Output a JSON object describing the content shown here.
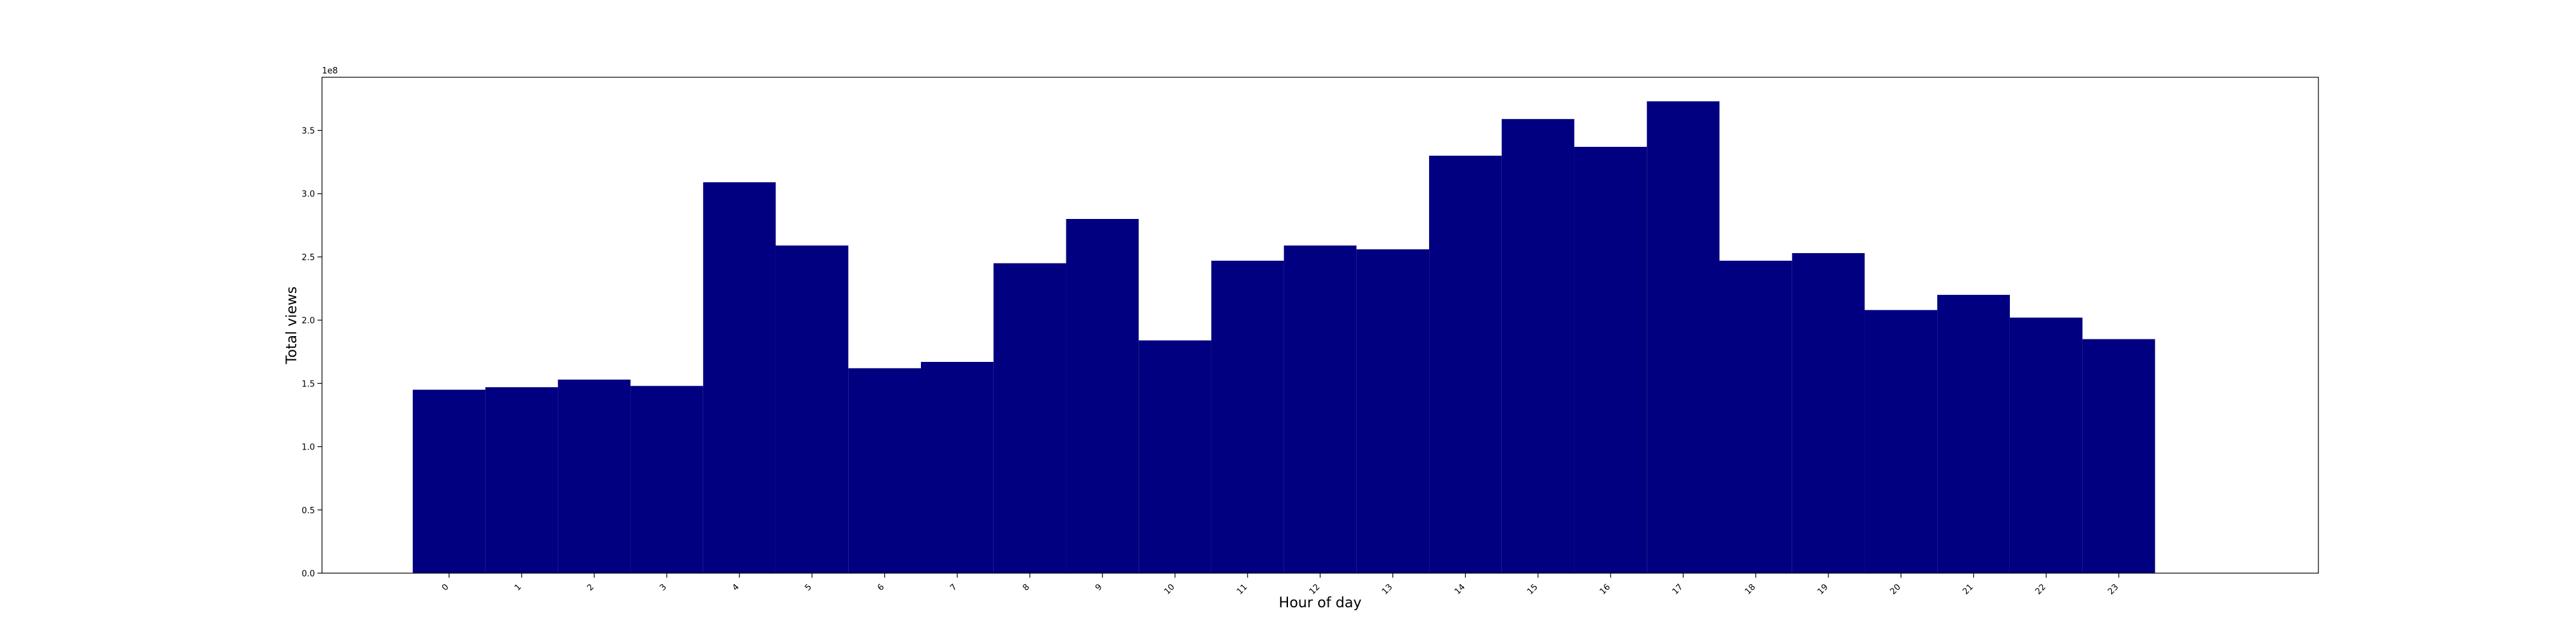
{
  "chart_data": {
    "type": "bar",
    "xlabel": "Hour of day",
    "ylabel": "Total views",
    "offset_label": "1e8",
    "categories": [
      "0",
      "1",
      "2",
      "3",
      "4",
      "5",
      "6",
      "7",
      "8",
      "9",
      "10",
      "11",
      "12",
      "13",
      "14",
      "15",
      "16",
      "17",
      "18",
      "19",
      "20",
      "21",
      "22",
      "23"
    ],
    "y_ticks": [
      0.0,
      0.5,
      1.0,
      1.5,
      2.0,
      2.5,
      3.0,
      3.5
    ],
    "y_tick_labels": [
      "0.0",
      "0.5",
      "1.0",
      "1.5",
      "2.0",
      "2.5",
      "3.0",
      "3.5"
    ],
    "ylim": [
      0,
      3.92
    ],
    "y_scale_note": "values in units of 1e8",
    "series": [
      {
        "values": [
          1.45,
          1.47,
          1.53,
          1.48,
          3.09,
          2.59,
          1.62,
          1.67,
          2.45,
          2.8,
          1.84,
          2.47,
          2.59,
          2.56,
          3.3,
          3.59,
          3.37,
          3.73,
          2.47,
          2.53,
          2.08,
          2.2,
          2.02,
          1.85
        ]
      }
    ],
    "bar_color": "#000080",
    "grid": false,
    "legend": "none"
  }
}
